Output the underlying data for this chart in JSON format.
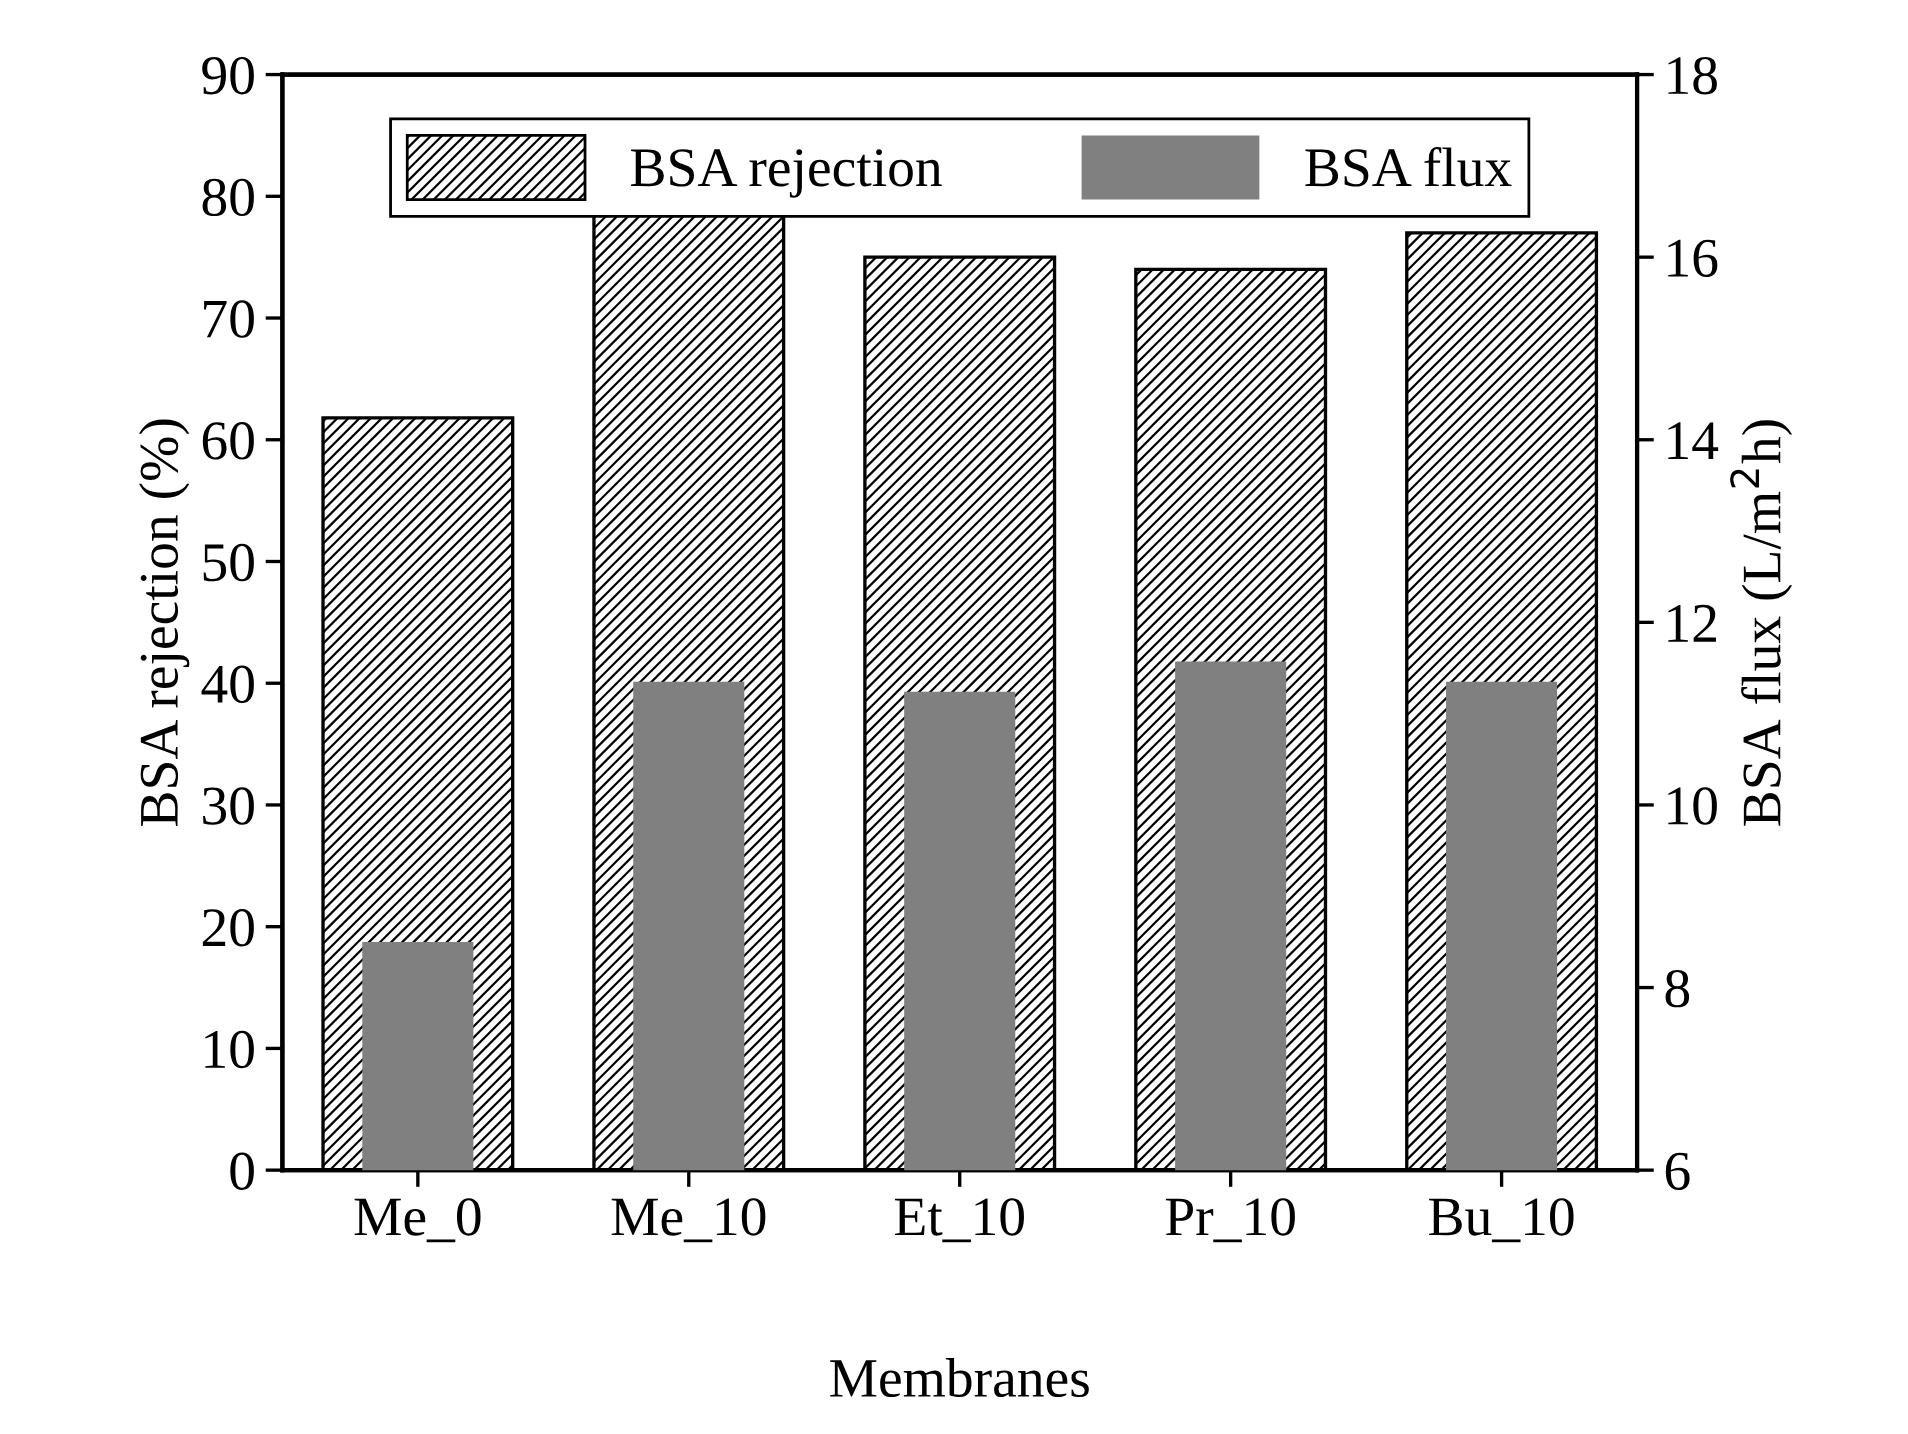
{
  "chart_data": {
    "type": "bar",
    "xlabel": "Membranes",
    "ylabel": "BSA rejection (%)",
    "y2label": "BSA flux (L/m$^{2}$h)",
    "categories": [
      "Me_0",
      "Me_10",
      "Et_10",
      "Pr_10",
      "Bu_10"
    ],
    "series": [
      {
        "name": "BSA rejection",
        "color": "#000000",
        "values": [
          61.8,
          78.5,
          75.0,
          74.0,
          77.0
        ]
      },
      {
        "name": "BSA flux",
        "color": "#808080",
        "axis": "y2",
        "values": [
          8.5,
          11.35,
          11.24,
          11.57,
          11.35
        ]
      }
    ],
    "ylim": [
      0,
      90
    ],
    "yticks": [
      0,
      10,
      20,
      30,
      40,
      50,
      60,
      70,
      80,
      90
    ],
    "y2lim": [
      6,
      18
    ],
    "y2ticks": [
      6,
      8,
      10,
      12,
      14,
      16,
      18
    ],
    "legend": "top",
    "grid": false
  }
}
